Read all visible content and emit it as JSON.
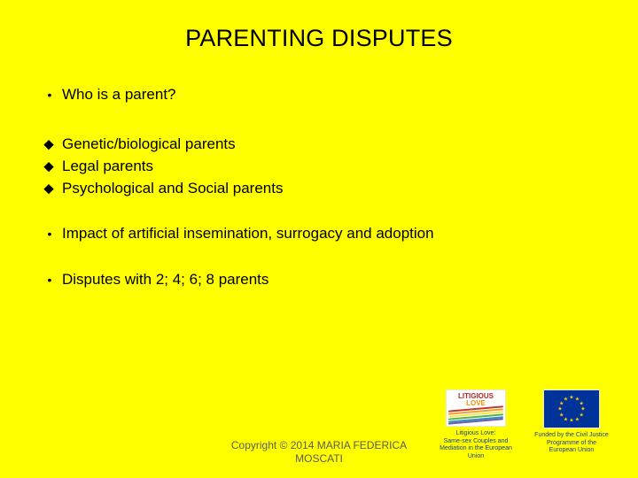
{
  "title": "PARENTING DISPUTES",
  "bullets": {
    "b1": "Who is a parent?",
    "d1": "Genetic/biological parents",
    "d2": "Legal parents",
    "d3": "Psychological and Social parents",
    "b2": "Impact of artificial insemination, surrogacy and adoption",
    "b3": "Disputes with 2; 4; 6; 8 parents"
  },
  "copyright": {
    "line1": "Copyright © 2014 MARIA FEDERICA",
    "line2": "MOSCATI"
  },
  "logos": {
    "litigious": {
      "line1": "LITIGIOUS",
      "line2": "LOVE",
      "caption1": "Litigious Love:",
      "caption2": "Same-sex Couples and",
      "caption3": "Mediation in the European Union",
      "wave_colors": [
        "#c23a2e",
        "#f0a02f",
        "#f6e84c",
        "#58b24a",
        "#2f8fbd",
        "#6b5fae"
      ]
    },
    "eu": {
      "caption1": "Funded by the Civil Justice",
      "caption2": "Programme of the",
      "caption3": "European Union",
      "flag_bg": "#003399",
      "star_color": "#ffcc00"
    }
  }
}
